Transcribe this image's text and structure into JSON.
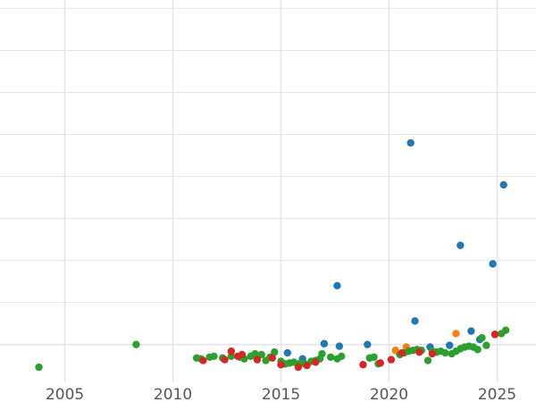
{
  "chart_data": {
    "type": "scatter",
    "title": "",
    "xlabel": "",
    "ylabel": "",
    "xlim": [
      2002.0,
      2026.8
    ],
    "ylim": [
      -4.5,
      41
    ],
    "grid": true,
    "legend": "none",
    "x_ticks": [
      "2005",
      "2010",
      "2015",
      "2020",
      "2025"
    ],
    "y_gridlines": [
      0,
      5,
      10,
      15,
      20,
      25,
      30,
      35,
      40
    ],
    "colors": {
      "blue": "#1f77b4",
      "orange": "#ff7f0e",
      "green": "#2ca02c",
      "red": "#d62728",
      "grid": "#e5e5e5",
      "tick_text": "#555555"
    },
    "series": [
      {
        "color": "#1f77b4",
        "points": [
          [
            2015.3,
            -1.0
          ],
          [
            2016.0,
            -1.7
          ],
          [
            2017.0,
            0.1
          ],
          [
            2017.6,
            7.0
          ],
          [
            2017.7,
            -0.2
          ],
          [
            2019.0,
            0.0
          ],
          [
            2021.0,
            24.0
          ],
          [
            2021.2,
            2.8
          ],
          [
            2021.9,
            -0.3
          ],
          [
            2022.8,
            -0.1
          ],
          [
            2023.3,
            11.8
          ],
          [
            2023.8,
            1.6
          ],
          [
            2024.2,
            0.6
          ],
          [
            2024.8,
            9.6
          ],
          [
            2025.3,
            19.0
          ]
        ]
      },
      {
        "color": "#ff7f0e",
        "points": [
          [
            2020.3,
            -0.7
          ],
          [
            2020.8,
            -0.3
          ],
          [
            2023.1,
            1.3
          ]
        ]
      },
      {
        "color": "#2ca02c",
        "points": [
          [
            2003.8,
            -2.7
          ],
          [
            2008.3,
            0.0
          ],
          [
            2011.1,
            -1.6
          ],
          [
            2011.3,
            -1.7
          ],
          [
            2011.7,
            -1.5
          ],
          [
            2011.9,
            -1.4
          ],
          [
            2012.3,
            -1.6
          ],
          [
            2012.7,
            -1.4
          ],
          [
            2013.1,
            -1.5
          ],
          [
            2013.3,
            -1.7
          ],
          [
            2013.6,
            -1.4
          ],
          [
            2013.8,
            -1.1
          ],
          [
            2014.1,
            -1.2
          ],
          [
            2014.3,
            -1.9
          ],
          [
            2014.5,
            -1.5
          ],
          [
            2014.7,
            -0.9
          ],
          [
            2015.0,
            -2.0
          ],
          [
            2015.2,
            -2.3
          ],
          [
            2015.4,
            -2.2
          ],
          [
            2015.6,
            -2.1
          ],
          [
            2015.9,
            -2.2
          ],
          [
            2016.1,
            -2.3
          ],
          [
            2016.4,
            -2.0
          ],
          [
            2016.6,
            -1.9
          ],
          [
            2016.8,
            -1.7
          ],
          [
            2016.9,
            -1.1
          ],
          [
            2017.3,
            -1.5
          ],
          [
            2017.6,
            -1.7
          ],
          [
            2017.8,
            -1.4
          ],
          [
            2019.1,
            -1.6
          ],
          [
            2019.3,
            -1.5
          ],
          [
            2019.5,
            -2.3
          ],
          [
            2020.5,
            -1.2
          ],
          [
            2020.7,
            -1.0
          ],
          [
            2020.9,
            -0.8
          ],
          [
            2021.1,
            -0.7
          ],
          [
            2021.3,
            -0.6
          ],
          [
            2021.5,
            -0.7
          ],
          [
            2021.8,
            -1.9
          ],
          [
            2022.0,
            -0.8
          ],
          [
            2022.2,
            -0.9
          ],
          [
            2022.4,
            -0.8
          ],
          [
            2022.6,
            -1.0
          ],
          [
            2022.9,
            -1.1
          ],
          [
            2023.1,
            -0.8
          ],
          [
            2023.3,
            -0.5
          ],
          [
            2023.5,
            -0.3
          ],
          [
            2023.7,
            -0.2
          ],
          [
            2023.9,
            -0.3
          ],
          [
            2024.1,
            -0.6
          ],
          [
            2024.3,
            0.8
          ],
          [
            2024.5,
            -0.1
          ],
          [
            2024.9,
            1.2
          ],
          [
            2025.2,
            1.3
          ],
          [
            2025.4,
            1.7
          ]
        ]
      },
      {
        "color": "#d62728",
        "points": [
          [
            2011.4,
            -1.9
          ],
          [
            2012.4,
            -1.8
          ],
          [
            2012.7,
            -0.8
          ],
          [
            2013.0,
            -1.4
          ],
          [
            2013.2,
            -1.2
          ],
          [
            2013.9,
            -1.8
          ],
          [
            2014.6,
            -1.6
          ],
          [
            2015.0,
            -2.4
          ],
          [
            2015.8,
            -2.7
          ],
          [
            2016.2,
            -2.5
          ],
          [
            2016.6,
            -2.1
          ],
          [
            2018.8,
            -2.4
          ],
          [
            2019.6,
            -2.2
          ],
          [
            2020.1,
            -1.8
          ],
          [
            2020.6,
            -1.0
          ],
          [
            2021.4,
            -0.9
          ],
          [
            2022.0,
            -1.1
          ],
          [
            2024.9,
            1.2
          ]
        ]
      }
    ]
  }
}
